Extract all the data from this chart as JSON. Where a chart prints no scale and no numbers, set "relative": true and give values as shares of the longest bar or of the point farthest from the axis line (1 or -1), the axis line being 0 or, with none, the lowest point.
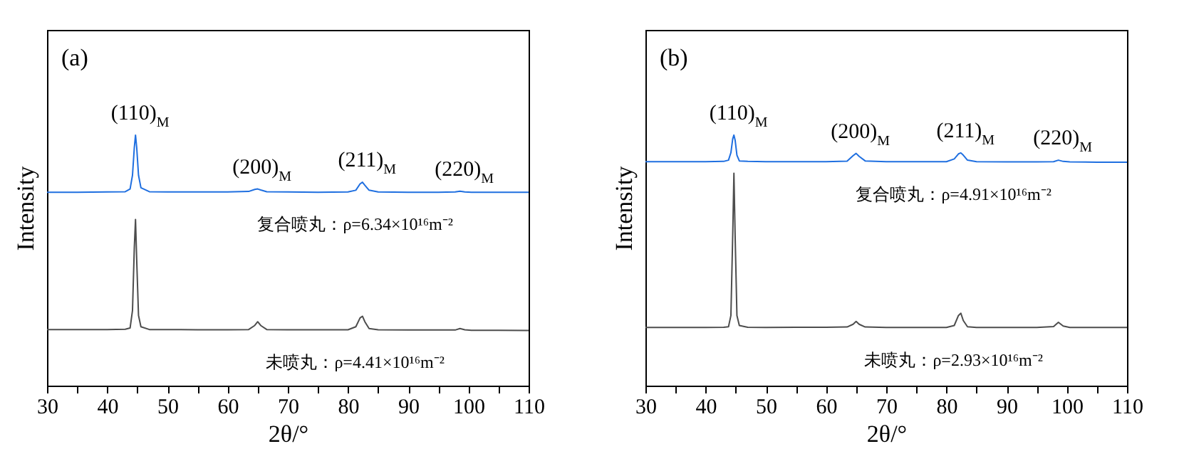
{
  "chart_data": [
    {
      "type": "line",
      "title": "(a)",
      "xlabel": "2θ/°",
      "ylabel": "Intensity",
      "relative": true,
      "tick_labels": "x",
      "grid": false,
      "marker": "none",
      "line_style": "solid",
      "xlim": [
        30,
        110
      ],
      "xticks": [
        30,
        {
          "value": 35,
          "label": null
        },
        40,
        {
          "value": 45,
          "label": null
        },
        50,
        {
          "value": 55,
          "label": null
        },
        60,
        {
          "value": 65,
          "label": null
        },
        70,
        {
          "value": 75,
          "label": null
        },
        80,
        {
          "value": 85,
          "label": null
        },
        90,
        {
          "value": 95,
          "label": null
        },
        100,
        {
          "value": 105,
          "label": null
        },
        110
      ],
      "x": [
        30,
        35,
        40,
        43,
        43.8,
        44.2,
        44.5,
        44.7,
        44.9,
        45.2,
        45.6,
        47,
        50,
        55,
        60,
        63.5,
        64.5,
        65,
        65.5,
        66.5,
        70,
        75,
        80,
        81.3,
        82,
        82.4,
        82.8,
        83.5,
        85,
        90,
        95,
        97.8,
        98.6,
        99.4,
        100.5,
        105,
        110
      ],
      "series": [
        {
          "name": "复合喷丸：ρ=6.34×10¹⁶m⁻²",
          "color": "#1f6fe0",
          "values": [
            0.772,
            0.772,
            0.773,
            0.774,
            0.785,
            0.84,
            0.95,
            1.0,
            0.95,
            0.84,
            0.79,
            0.774,
            0.773,
            0.773,
            0.773,
            0.775,
            0.783,
            0.785,
            0.781,
            0.774,
            0.773,
            0.772,
            0.773,
            0.78,
            0.805,
            0.812,
            0.8,
            0.78,
            0.773,
            0.772,
            0.772,
            0.773,
            0.776,
            0.773,
            0.772,
            0.772,
            0.772
          ]
        },
        {
          "name": "未喷丸：ρ=4.41×10¹⁶m⁻²",
          "color": "#4d4d4d",
          "values": [
            0.224,
            0.224,
            0.224,
            0.225,
            0.23,
            0.3,
            0.55,
            0.663,
            0.5,
            0.28,
            0.235,
            0.224,
            0.224,
            0.223,
            0.223,
            0.224,
            0.24,
            0.255,
            0.24,
            0.224,
            0.223,
            0.223,
            0.223,
            0.235,
            0.27,
            0.277,
            0.255,
            0.228,
            0.223,
            0.222,
            0.222,
            0.222,
            0.228,
            0.223,
            0.221,
            0.221,
            0.22
          ]
        }
      ],
      "annotations": [
        {
          "text": "(110)$_{M}$",
          "x": 44.7,
          "y": 1.0
        },
        {
          "text": "(200)$_{M}$",
          "x": 65,
          "y": 0.785
        },
        {
          "text": "(211)$_{M}$",
          "x": 82.4,
          "y": 0.812
        },
        {
          "text": "(220)$_{M}$",
          "x": 98.6,
          "y": 0.776
        }
      ]
    },
    {
      "type": "line",
      "title": "(b)",
      "xlabel": "2θ/°",
      "ylabel": "Intensity",
      "relative": true,
      "tick_labels": "x",
      "grid": false,
      "marker": "none",
      "line_style": "solid",
      "xlim": [
        30,
        110
      ],
      "xticks": [
        30,
        {
          "value": 35,
          "label": null
        },
        40,
        {
          "value": 45,
          "label": null
        },
        50,
        {
          "value": 55,
          "label": null
        },
        60,
        {
          "value": 65,
          "label": null
        },
        70,
        {
          "value": 75,
          "label": null
        },
        80,
        {
          "value": 85,
          "label": null
        },
        90,
        {
          "value": 95,
          "label": null
        },
        100,
        {
          "value": 105,
          "label": null
        },
        110
      ],
      "x": [
        30,
        35,
        40,
        43,
        43.8,
        44.2,
        44.5,
        44.7,
        44.9,
        45.2,
        45.6,
        47,
        50,
        55,
        60,
        63.5,
        64.5,
        65,
        65.5,
        66.5,
        70,
        75,
        80,
        81.3,
        82,
        82.4,
        82.8,
        83.5,
        85,
        90,
        95,
        97.8,
        98.6,
        99.4,
        100.5,
        105,
        110
      ],
      "series": [
        {
          "name": "复合喷丸：ρ=4.91×10¹⁶m⁻²",
          "color": "#1f6fe0",
          "values": [
            0.894,
            0.894,
            0.894,
            0.895,
            0.9,
            0.93,
            0.985,
            1.0,
            0.98,
            0.92,
            0.897,
            0.895,
            0.894,
            0.894,
            0.894,
            0.896,
            0.918,
            0.927,
            0.915,
            0.897,
            0.894,
            0.894,
            0.894,
            0.905,
            0.925,
            0.929,
            0.92,
            0.9,
            0.894,
            0.893,
            0.893,
            0.894,
            0.9,
            0.895,
            0.893,
            0.892,
            0.892
          ]
        },
        {
          "name": "未喷丸：ρ=2.93×10¹⁶m⁻²",
          "color": "#4d4d4d",
          "values": [
            0.232,
            0.232,
            0.232,
            0.233,
            0.235,
            0.28,
            0.6,
            0.848,
            0.6,
            0.28,
            0.24,
            0.233,
            0.232,
            0.233,
            0.233,
            0.234,
            0.245,
            0.256,
            0.245,
            0.234,
            0.232,
            0.232,
            0.232,
            0.24,
            0.28,
            0.289,
            0.26,
            0.235,
            0.232,
            0.232,
            0.232,
            0.236,
            0.253,
            0.238,
            0.232,
            0.232,
            0.232
          ]
        }
      ],
      "annotations": [
        {
          "text": "(110)$_{M}$",
          "x": 44.7,
          "y": 1.0
        },
        {
          "text": "(200)$_{M}$",
          "x": 65,
          "y": 0.927
        },
        {
          "text": "(211)$_{M}$",
          "x": 82.4,
          "y": 0.929
        },
        {
          "text": "(220)$_{M}$",
          "x": 98.6,
          "y": 0.9
        }
      ]
    }
  ]
}
